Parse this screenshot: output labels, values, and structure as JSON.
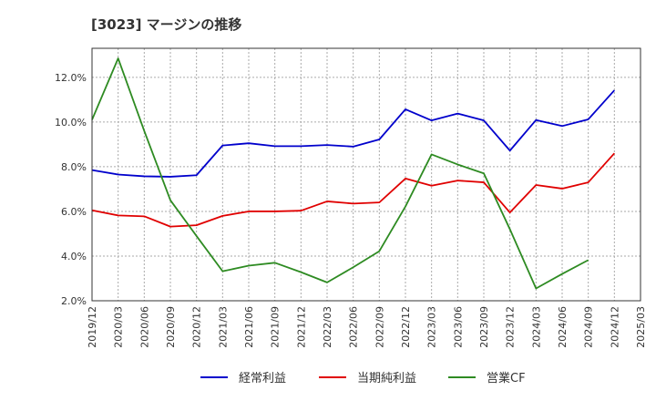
{
  "chart_data": {
    "type": "line",
    "title": "[3023]  マージンの推移",
    "xlabel": "",
    "ylabel": "",
    "x": [
      "2019/12",
      "2020/03",
      "2020/06",
      "2020/09",
      "2020/12",
      "2021/03",
      "2021/06",
      "2021/09",
      "2021/12",
      "2022/03",
      "2022/06",
      "2022/09",
      "2022/12",
      "2023/03",
      "2023/06",
      "2023/09",
      "2023/12",
      "2024/03",
      "2024/06",
      "2024/09",
      "2024/12",
      "2025/03"
    ],
    "y_ticks": [
      "2.0%",
      "4.0%",
      "6.0%",
      "8.0%",
      "10.0%",
      "12.0%"
    ],
    "ylim": [
      2.0,
      13.3
    ],
    "grid": true,
    "legend": "bottom",
    "series": [
      {
        "name": "経常利益",
        "color": "#0000cc",
        "values": [
          7.85,
          7.65,
          7.57,
          7.55,
          7.62,
          8.95,
          9.05,
          8.92,
          8.92,
          8.97,
          8.9,
          9.22,
          10.57,
          10.07,
          10.38,
          10.07,
          8.72,
          10.09,
          9.82,
          10.12,
          11.42,
          null
        ]
      },
      {
        "name": "当期純利益",
        "color": "#e00000",
        "values": [
          6.05,
          5.82,
          5.78,
          5.32,
          5.38,
          5.8,
          6.0,
          6.0,
          6.03,
          6.45,
          6.35,
          6.4,
          7.47,
          7.15,
          7.38,
          7.3,
          5.95,
          7.18,
          7.02,
          7.3,
          8.6,
          null
        ]
      },
      {
        "name": "営業CF",
        "color": "#2e8b22",
        "values": [
          10.1,
          12.85,
          9.6,
          6.5,
          4.9,
          3.32,
          3.57,
          3.7,
          3.28,
          2.82,
          3.5,
          4.22,
          6.22,
          8.55,
          8.1,
          7.7,
          5.2,
          2.55,
          3.2,
          3.82,
          null,
          null
        ]
      }
    ]
  }
}
